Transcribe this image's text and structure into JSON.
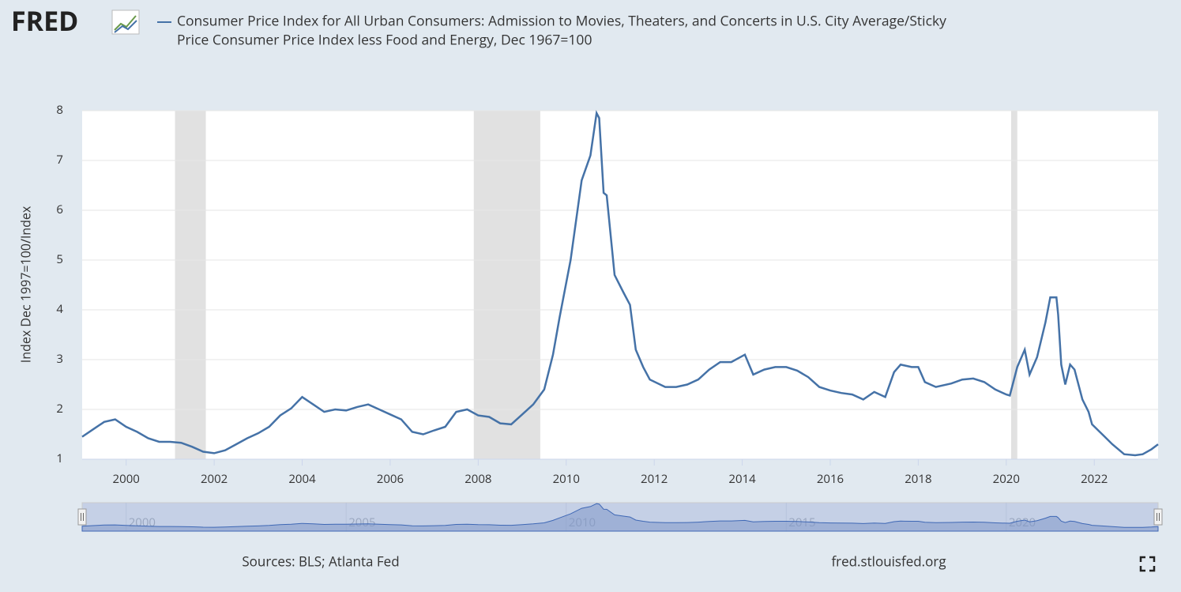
{
  "logo": "FRED",
  "chart_data": {
    "type": "line",
    "title_line1": "Consumer Price Index for All Urban Consumers: Admission to Movies, Theaters, and Concerts in U.S. City Average/Sticky",
    "title_line2": "Price Consumer Price Index less Food and Energy, Dec 1967=100",
    "y_label": "Index Dec 1997=100/Index",
    "xlim": [
      1999.0,
      2023.45
    ],
    "ylim": [
      1,
      8
    ],
    "xticks": [
      2000,
      2002,
      2004,
      2006,
      2008,
      2010,
      2012,
      2014,
      2016,
      2018,
      2020,
      2022
    ],
    "yticks": [
      1,
      2,
      3,
      4,
      5,
      6,
      7,
      8
    ],
    "grid": true,
    "recessions": [
      [
        2001.11,
        2001.81
      ],
      [
        2007.9,
        2009.41
      ],
      [
        2020.11,
        2020.25
      ]
    ],
    "recession_color": "#e1e1e1",
    "x": [
      1999.0,
      1999.25,
      1999.5,
      1999.75,
      2000.0,
      2000.25,
      2000.5,
      2000.75,
      2001.0,
      2001.25,
      2001.5,
      2001.75,
      2002.0,
      2002.25,
      2002.5,
      2002.75,
      2003.0,
      2003.25,
      2003.5,
      2003.75,
      2004.0,
      2004.25,
      2004.5,
      2004.75,
      2005.0,
      2005.25,
      2005.5,
      2005.75,
      2006.0,
      2006.25,
      2006.5,
      2006.75,
      2007.0,
      2007.25,
      2007.5,
      2007.75,
      2008.0,
      2008.25,
      2008.5,
      2008.75,
      2009.0,
      2009.25,
      2009.5,
      2009.7,
      2009.85,
      2010.1,
      2010.35,
      2010.55,
      2010.69,
      2010.75,
      2010.85,
      2010.92,
      2011.1,
      2011.3,
      2011.45,
      2011.58,
      2011.75,
      2011.9,
      2012.25,
      2012.5,
      2012.75,
      2013.0,
      2013.25,
      2013.5,
      2013.75,
      2014.06,
      2014.25,
      2014.5,
      2014.75,
      2015.0,
      2015.25,
      2015.5,
      2015.75,
      2016.0,
      2016.25,
      2016.5,
      2016.75,
      2017.0,
      2017.25,
      2017.45,
      2017.6,
      2017.85,
      2018.0,
      2018.15,
      2018.4,
      2018.75,
      2019.0,
      2019.25,
      2019.5,
      2019.75,
      2020.0,
      2020.08,
      2020.25,
      2020.42,
      2020.53,
      2020.7,
      2020.89,
      2021.0,
      2021.14,
      2021.18,
      2021.25,
      2021.34,
      2021.45,
      2021.55,
      2021.73,
      2021.87,
      2021.95,
      2022.18,
      2022.41,
      2022.68,
      2022.93,
      2023.1,
      2023.3,
      2023.45
    ],
    "series": [
      {
        "name": "Consumer Price Index for All Urban Consumers: Admission to Movies, Theaters, and Concerts in U.S. City Average/Sticky Price Consumer Price Index less Food and Energy, Dec 1967=100",
        "color": "#4572a7",
        "values": [
          1.45,
          1.6,
          1.75,
          1.8,
          1.65,
          1.55,
          1.42,
          1.35,
          1.35,
          1.33,
          1.25,
          1.15,
          1.12,
          1.18,
          1.3,
          1.42,
          1.52,
          1.65,
          1.88,
          2.02,
          2.25,
          2.1,
          1.95,
          2.0,
          1.98,
          2.05,
          2.1,
          2.0,
          1.9,
          1.8,
          1.55,
          1.5,
          1.58,
          1.65,
          1.95,
          2.0,
          1.88,
          1.85,
          1.72,
          1.7,
          1.9,
          2.1,
          2.4,
          3.1,
          3.85,
          5.0,
          6.6,
          7.1,
          7.95,
          7.85,
          6.35,
          6.3,
          4.7,
          4.35,
          4.1,
          3.2,
          2.85,
          2.6,
          2.45,
          2.45,
          2.5,
          2.6,
          2.8,
          2.95,
          2.95,
          3.1,
          2.7,
          2.8,
          2.85,
          2.85,
          2.78,
          2.65,
          2.45,
          2.38,
          2.33,
          2.3,
          2.2,
          2.35,
          2.25,
          2.75,
          2.9,
          2.85,
          2.85,
          2.55,
          2.45,
          2.52,
          2.6,
          2.62,
          2.55,
          2.4,
          2.3,
          2.28,
          2.85,
          3.2,
          2.7,
          3.05,
          3.75,
          4.25,
          4.25,
          3.9,
          2.9,
          2.5,
          2.9,
          2.8,
          2.2,
          1.95,
          1.7,
          1.5,
          1.3,
          1.1,
          1.08,
          1.1,
          1.2,
          1.3
        ]
      }
    ],
    "navigator_ticks": [
      2000,
      2005,
      2010,
      2015,
      2020
    ]
  },
  "footer": {
    "sources": "Sources: BLS; Atlanta Fed",
    "site": "fred.stlouisfed.org"
  }
}
